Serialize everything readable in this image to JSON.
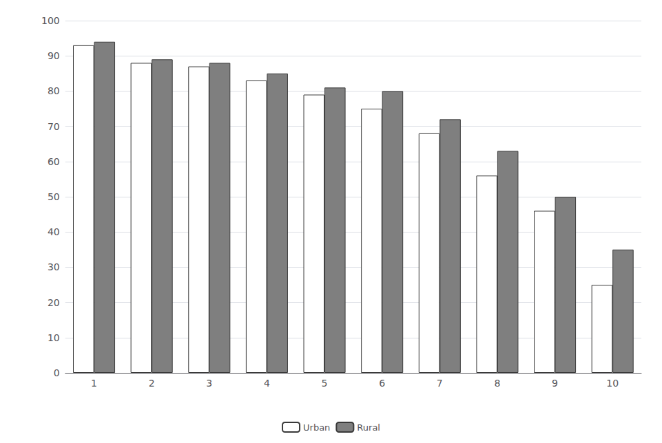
{
  "chart_data": {
    "type": "bar",
    "categories": [
      "1",
      "2",
      "3",
      "4",
      "5",
      "6",
      "7",
      "8",
      "9",
      "10"
    ],
    "series": [
      {
        "name": "Urban",
        "color": "#ffffff",
        "values": [
          93,
          88,
          87,
          83,
          79,
          75,
          68,
          56,
          46,
          25
        ]
      },
      {
        "name": "Rural",
        "color": "#7f7f7f",
        "values": [
          94,
          89,
          88,
          85,
          81,
          80,
          72,
          63,
          50,
          35
        ]
      }
    ],
    "ylim": [
      0,
      100
    ],
    "yticks": [
      0,
      10,
      20,
      30,
      40,
      50,
      60,
      70,
      80,
      90,
      100
    ],
    "grid": true,
    "legend": "bottom"
  }
}
